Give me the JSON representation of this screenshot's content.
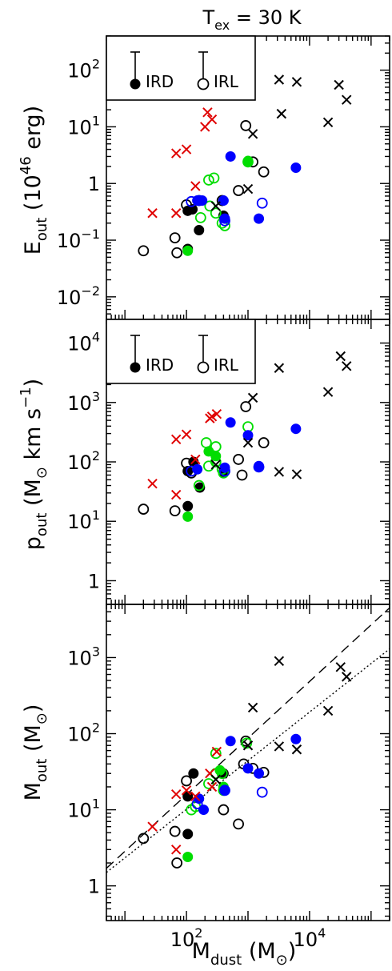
{
  "title": "T",
  "title_sub": "ex",
  "title_rest": " = 30 K",
  "legend_labels": {
    "ird": "IRD",
    "irl": "IRL"
  },
  "colors": {
    "black": "#000000",
    "green": "#00dd00",
    "blue": "#0000ff",
    "red": "#e00000"
  },
  "chart_data": [
    {
      "type": "scatter",
      "id": "eout",
      "ylabel": "E_out (10^46 erg)",
      "xlabel": "",
      "log_x": true,
      "log_y": true,
      "xlim": [
        5,
        200000
      ],
      "ylim": [
        0.004,
        400
      ],
      "y_tick_labels": [
        "10^-2",
        "10^-1",
        "1",
        "10^1",
        "10^2"
      ],
      "y_ticks": [
        0.01,
        0.1,
        1,
        10,
        100
      ],
      "legend": "top-left",
      "series": [
        {
          "name": "IRD",
          "marker": "filled",
          "color": "black",
          "points": [
            [
              105,
              0.33
            ],
            [
              125,
              0.35
            ],
            [
              160,
              0.15
            ],
            [
              400,
              0.27
            ],
            [
              105,
              0.07
            ]
          ]
        },
        {
          "name": "IRL",
          "marker": "open",
          "color": "black",
          "points": [
            [
              20,
              0.065
            ],
            [
              65,
              0.11
            ],
            [
              70,
              0.06
            ],
            [
              100,
              0.42
            ],
            [
              700,
              0.75
            ],
            [
              920,
              10.5
            ],
            [
              1800,
              1.6
            ],
            [
              380,
              0.5
            ],
            [
              1200,
              2.4
            ]
          ]
        },
        {
          "name": "",
          "marker": "filled",
          "color": "green",
          "points": [
            [
              105,
              0.065
            ],
            [
              1000,
              2.5
            ]
          ]
        },
        {
          "name": "",
          "marker": "open",
          "color": "green",
          "points": [
            [
              230,
              1.15
            ],
            [
              280,
              1.25
            ],
            [
              170,
              0.25
            ],
            [
              240,
              0.4
            ],
            [
              380,
              0.2
            ],
            [
              420,
              0.18
            ],
            [
              160,
              0.5
            ],
            [
              1000,
              2.4
            ],
            [
              300,
              0.3
            ]
          ]
        },
        {
          "name": "",
          "marker": "filled",
          "color": "blue",
          "points": [
            [
              520,
              3.0
            ],
            [
              150,
              0.5
            ],
            [
              180,
              0.5
            ],
            [
              420,
              0.24
            ],
            [
              1500,
              0.24
            ],
            [
              6000,
              1.9
            ],
            [
              400,
              0.5
            ]
          ]
        },
        {
          "name": "",
          "marker": "open",
          "color": "blue",
          "points": [
            [
              120,
              0.48
            ],
            [
              1700,
              0.45
            ],
            [
              420,
              0.22
            ],
            [
              160,
              0.5
            ]
          ]
        },
        {
          "name": "",
          "marker": "cross",
          "color": "red",
          "points": [
            [
              28,
              0.3
            ],
            [
              68,
              3.4
            ],
            [
              100,
              4.0
            ],
            [
              68,
              0.3
            ],
            [
              140,
              0.9
            ],
            [
              200,
              10
            ],
            [
              220,
              18
            ],
            [
              260,
              13.5
            ]
          ]
        },
        {
          "name": "",
          "marker": "cross",
          "color": "black",
          "points": [
            [
              3200,
              68
            ],
            [
              6200,
              62
            ],
            [
              1200,
              7.5
            ],
            [
              3500,
              17
            ],
            [
              30000,
              55
            ],
            [
              40000,
              30
            ],
            [
              20000,
              12
            ],
            [
              1000,
              0.8
            ],
            [
              300,
              0.4
            ]
          ]
        }
      ]
    },
    {
      "type": "scatter",
      "id": "pout",
      "ylabel": "p_out (M_sun km s^-1)",
      "xlabel": "",
      "log_x": true,
      "log_y": true,
      "xlim": [
        5,
        200000
      ],
      "ylim": [
        0.4,
        25000
      ],
      "y_tick_labels": [
        "1",
        "10^1",
        "10^2",
        "10^3",
        "10^4"
      ],
      "y_ticks": [
        1,
        10,
        100,
        1000,
        10000
      ],
      "legend": "top-left",
      "series": [
        {
          "name": "IRD",
          "marker": "filled",
          "color": "black",
          "points": [
            [
              130,
              100
            ],
            [
              165,
              37
            ],
            [
              105,
              70
            ],
            [
              400,
              68
            ],
            [
              105,
              18
            ]
          ]
        },
        {
          "name": "IRL",
          "marker": "open",
          "color": "black",
          "points": [
            [
              20,
              16
            ],
            [
              65,
              15
            ],
            [
              100,
              95
            ],
            [
              700,
              110
            ],
            [
              800,
              60
            ],
            [
              920,
              850
            ],
            [
              1800,
              210
            ],
            [
              120,
              65
            ]
          ]
        },
        {
          "name": "",
          "marker": "filled",
          "color": "green",
          "points": [
            [
              105,
              12
            ],
            [
              230,
              150
            ],
            [
              300,
              125
            ]
          ]
        },
        {
          "name": "",
          "marker": "open",
          "color": "green",
          "points": [
            [
              210,
              210
            ],
            [
              300,
              180
            ],
            [
              230,
              85
            ],
            [
              160,
              40
            ],
            [
              400,
              65
            ],
            [
              1000,
              390
            ],
            [
              380,
              75
            ],
            [
              300,
              100
            ]
          ]
        },
        {
          "name": "",
          "marker": "filled",
          "color": "blue",
          "points": [
            [
              520,
              460
            ],
            [
              150,
              75
            ],
            [
              1000,
              280
            ],
            [
              1500,
              85
            ],
            [
              6000,
              360
            ],
            [
              420,
              80
            ]
          ]
        },
        {
          "name": "",
          "marker": "open",
          "color": "blue",
          "points": [
            [
              1500,
              82
            ],
            [
              120,
              70
            ],
            [
              420,
              70
            ]
          ]
        },
        {
          "name": "",
          "marker": "cross",
          "color": "red",
          "points": [
            [
              28,
              43
            ],
            [
              68,
              240
            ],
            [
              100,
              290
            ],
            [
              68,
              28
            ],
            [
              140,
              110
            ],
            [
              240,
              540
            ],
            [
              260,
              580
            ],
            [
              310,
              640
            ]
          ]
        },
        {
          "name": "",
          "marker": "cross",
          "color": "black",
          "points": [
            [
              3200,
              3800
            ],
            [
              1200,
              1200
            ],
            [
              3200,
              68
            ],
            [
              6200,
              62
            ],
            [
              20000,
              1500
            ],
            [
              32000,
              6000
            ],
            [
              40000,
              4100
            ],
            [
              1000,
              210
            ],
            [
              300,
              90
            ]
          ]
        }
      ]
    },
    {
      "type": "scatter",
      "id": "mout",
      "ylabel": "M_out (M_sun)",
      "xlabel": "M_dust (M_sun)",
      "log_x": true,
      "log_y": true,
      "xlim": [
        5,
        200000
      ],
      "ylim": [
        0.35,
        5000
      ],
      "x_tick_labels": [
        "10^2",
        "10^4"
      ],
      "x_ticks": [
        100,
        10000
      ],
      "y_tick_labels": [
        "1",
        "10^1",
        "10^2",
        "10^3"
      ],
      "y_ticks": [
        1,
        10,
        100,
        1000
      ],
      "lines": [
        {
          "style": "dashed",
          "points": [
            [
              5,
              1.7
            ],
            [
              200000,
              4500
            ]
          ]
        },
        {
          "style": "dotted",
          "points": [
            [
              5,
              1.5
            ],
            [
              200000,
              1300
            ]
          ]
        }
      ],
      "series": [
        {
          "name": "",
          "marker": "filled",
          "color": "black",
          "points": [
            [
              130,
              30
            ],
            [
              105,
              15
            ],
            [
              400,
              30
            ],
            [
              105,
              4.8
            ]
          ]
        },
        {
          "name": "",
          "marker": "open",
          "color": "black",
          "points": [
            [
              20,
              4.2
            ],
            [
              65,
              5.2
            ],
            [
              70,
              2.0
            ],
            [
              100,
              24
            ],
            [
              700,
              6.5
            ],
            [
              920,
              80
            ],
            [
              1800,
              31
            ],
            [
              850,
              40
            ],
            [
              400,
              10
            ],
            [
              1200,
              35
            ]
          ]
        },
        {
          "name": "",
          "marker": "filled",
          "color": "green",
          "points": [
            [
              105,
              2.4
            ],
            [
              350,
              33
            ],
            [
              400,
              20
            ]
          ]
        },
        {
          "name": "",
          "marker": "open",
          "color": "green",
          "points": [
            [
              120,
              10
            ],
            [
              140,
              11
            ],
            [
              230,
              22
            ],
            [
              300,
              55
            ],
            [
              400,
              18
            ],
            [
              950,
              75
            ],
            [
              380,
              30
            ],
            [
              300,
              30
            ]
          ]
        },
        {
          "name": "",
          "marker": "filled",
          "color": "blue",
          "points": [
            [
              520,
              80
            ],
            [
              160,
              14
            ],
            [
              190,
              10
            ],
            [
              1000,
              35
            ],
            [
              1500,
              30
            ],
            [
              6000,
              85
            ],
            [
              420,
              18
            ]
          ]
        },
        {
          "name": "",
          "marker": "open",
          "color": "blue",
          "points": [
            [
              1700,
              17
            ],
            [
              150,
              12
            ],
            [
              420,
              18
            ]
          ]
        },
        {
          "name": "",
          "marker": "cross",
          "color": "red",
          "points": [
            [
              28,
              6
            ],
            [
              68,
              16
            ],
            [
              100,
              18
            ],
            [
              68,
              3
            ],
            [
              140,
              15
            ],
            [
              240,
              30
            ],
            [
              260,
              20
            ],
            [
              310,
              58
            ]
          ]
        },
        {
          "name": "",
          "marker": "cross",
          "color": "black",
          "points": [
            [
              3200,
              900
            ],
            [
              1200,
              220
            ],
            [
              3200,
              68
            ],
            [
              6200,
              62
            ],
            [
              20000,
              200
            ],
            [
              32000,
              750
            ],
            [
              40000,
              560
            ],
            [
              1000,
              70
            ],
            [
              300,
              25
            ]
          ]
        }
      ]
    }
  ]
}
